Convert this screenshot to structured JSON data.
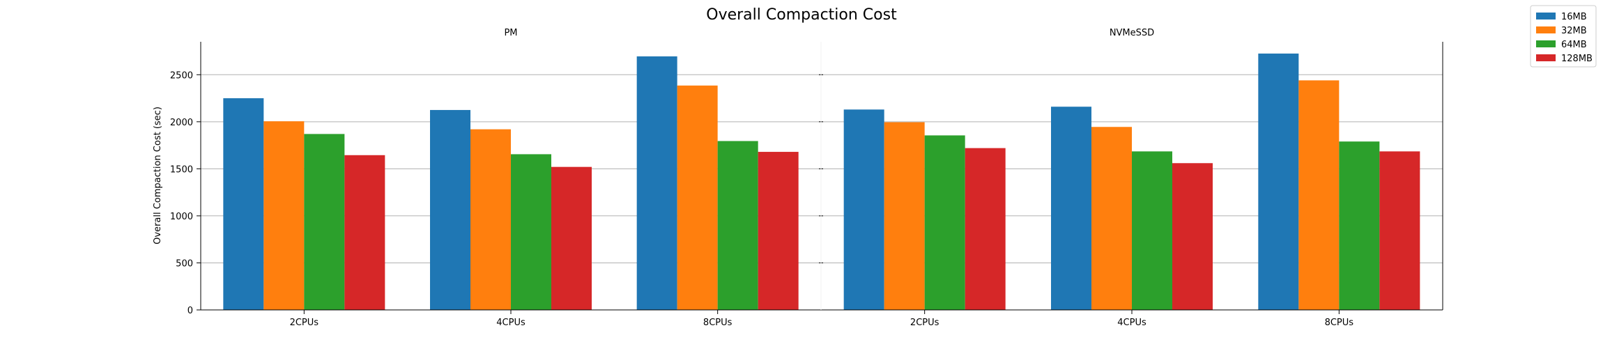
{
  "chart_data": {
    "type": "bar",
    "title": "Overall Compaction Cost",
    "ylabel": "Overall Compaction Cost (sec)",
    "ylim": [
      0,
      2850
    ],
    "yticks": [
      0,
      500,
      1000,
      1500,
      2000,
      2500
    ],
    "grid": "y",
    "legend_position": "top-right",
    "legend": [
      "16MB",
      "32MB",
      "64MB",
      "128MB"
    ],
    "colors": [
      "#1f77b4",
      "#ff7f0e",
      "#2ca02c",
      "#d62728"
    ],
    "panels": [
      {
        "title": "PM",
        "categories": [
          "2CPUs",
          "4CPUs",
          "8CPUs"
        ],
        "series": [
          {
            "name": "16MB",
            "values": [
              2250,
              2125,
              2695
            ]
          },
          {
            "name": "32MB",
            "values": [
              2005,
              1920,
              2385
            ]
          },
          {
            "name": "64MB",
            "values": [
              1870,
              1655,
              1795
            ]
          },
          {
            "name": "128MB",
            "values": [
              1645,
              1520,
              1680
            ]
          }
        ]
      },
      {
        "title": "NVMeSSD",
        "categories": [
          "2CPUs",
          "4CPUs",
          "8CPUs"
        ],
        "series": [
          {
            "name": "16MB",
            "values": [
              2130,
              2160,
              2725
            ]
          },
          {
            "name": "32MB",
            "values": [
              1995,
              1945,
              2440
            ]
          },
          {
            "name": "64MB",
            "values": [
              1855,
              1685,
              1790
            ]
          },
          {
            "name": "128MB",
            "values": [
              1720,
              1560,
              1685
            ]
          }
        ]
      }
    ]
  }
}
